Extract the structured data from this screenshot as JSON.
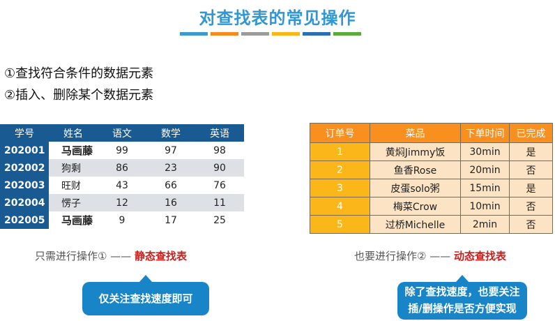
{
  "title": "对查找表的常见操作",
  "color_bar": [
    "#3d9ad1",
    "#f7891f",
    "#9b9b9b",
    "#fbb71a",
    "#2c6fb7",
    "#5aab3c"
  ],
  "points": [
    "①查找符合条件的数据元素",
    "②插入、删除某个数据元素"
  ],
  "student_table": {
    "headers": [
      "学号",
      "姓名",
      "语文",
      "数学",
      "英语"
    ],
    "rows": [
      [
        "202001",
        "马画藤",
        "99",
        "97",
        "98"
      ],
      [
        "202002",
        "狗剩",
        "86",
        "23",
        "90"
      ],
      [
        "202003",
        "旺财",
        "43",
        "66",
        "76"
      ],
      [
        "202004",
        "愣子",
        "12",
        "16",
        "11"
      ],
      [
        "202005",
        "马画藤",
        "9",
        "17",
        "25"
      ]
    ]
  },
  "order_table": {
    "headers": [
      "订单号",
      "菜品",
      "下单时间",
      "已完成"
    ],
    "rows": [
      [
        "1",
        "黄焖Jimmy饭",
        "30min",
        "是"
      ],
      [
        "2",
        "鱼香Rose",
        "20min",
        "否"
      ],
      [
        "3",
        "皮蛋solo粥",
        "15min",
        "是"
      ],
      [
        "4",
        "梅菜Crow",
        "10min",
        "否"
      ],
      [
        "5",
        "过桥Michelle",
        "2min",
        "否"
      ]
    ]
  },
  "left_caption": {
    "prefix": "只需进行操作① —— ",
    "highlight": "静态查找表"
  },
  "right_caption": {
    "prefix": "也要进行操作② —— ",
    "highlight": "动态查找表"
  },
  "left_bubble": "仅关注查找速度即可",
  "right_bubble": {
    "line1": "除了查找速度，也要关注",
    "line2": "插/删操作是否方便实现"
  }
}
